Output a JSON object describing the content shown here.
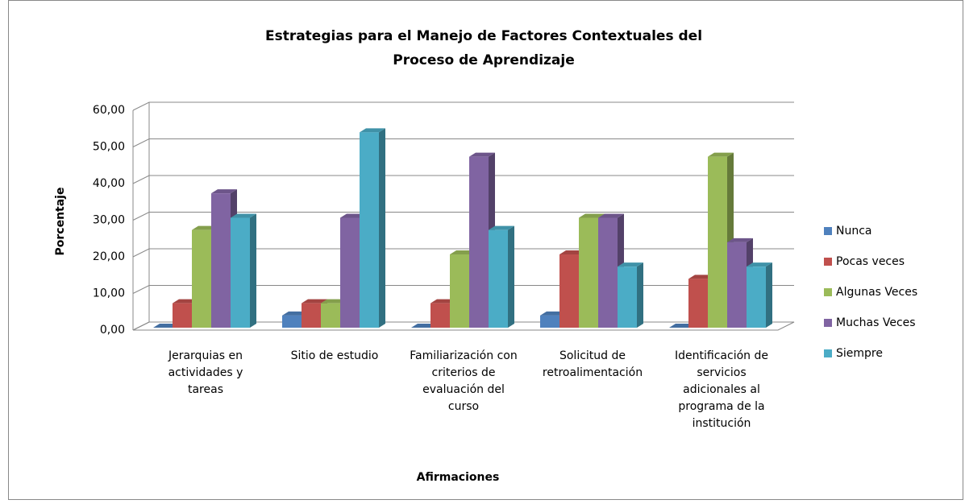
{
  "chart_data": {
    "type": "bar3d",
    "title": "Estrategias para el Manejo de Factores Contextuales del Proceso de Aprendizaje",
    "x_label": "Afirmaciones",
    "y_label": "Porcentaje",
    "categories": [
      "Jerarquias en actividades y tareas",
      "Sitio de estudio",
      "Familiarización con criterios de evaluación del curso",
      "Solicitud de retroalimentación",
      "Identificación de servicios adicionales al programa de la institución"
    ],
    "series": [
      {
        "name": "Nunca",
        "color": "#4f81bd",
        "values": [
          0,
          3.33,
          0,
          3.33,
          0
        ]
      },
      {
        "name": "Pocas veces",
        "color": "#c0504d",
        "values": [
          6.67,
          6.67,
          6.67,
          20,
          13.33
        ]
      },
      {
        "name": "Algunas Veces",
        "color": "#9bbb59",
        "values": [
          26.67,
          6.67,
          20,
          30,
          46.67
        ]
      },
      {
        "name": "Muchas Veces",
        "color": "#8064a2",
        "values": [
          36.67,
          30,
          46.67,
          30,
          23.33
        ]
      },
      {
        "name": "Siempre",
        "color": "#4bacc6",
        "values": [
          30,
          53.33,
          26.67,
          16.67,
          16.67
        ]
      }
    ],
    "ylim": [
      0,
      60
    ],
    "yticks": [
      {
        "value": 0,
        "label": "0,00"
      },
      {
        "value": 10,
        "label": "10,00"
      },
      {
        "value": 20,
        "label": "20,00"
      },
      {
        "value": 30,
        "label": "30,00"
      },
      {
        "value": 40,
        "label": "40,00"
      },
      {
        "value": 50,
        "label": "50,00"
      },
      {
        "value": 60,
        "label": "60,00"
      }
    ],
    "grid": true,
    "legend": "right"
  }
}
